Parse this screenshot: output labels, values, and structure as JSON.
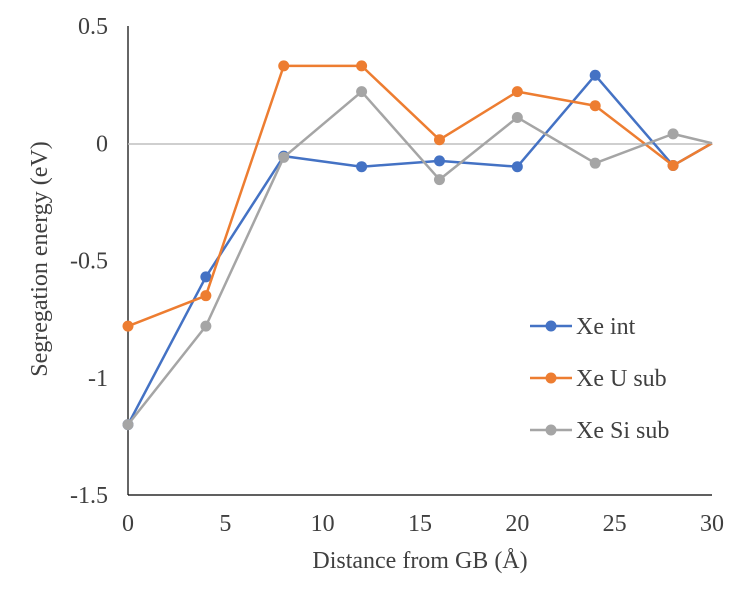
{
  "chart_data": {
    "type": "line",
    "title": "",
    "xlabel": "Distance from GB (Å)",
    "ylabel": "Segregation energy (eV)",
    "xlim": [
      0,
      30
    ],
    "ylim": [
      -1.5,
      0.5
    ],
    "x_ticks": [
      0,
      5,
      10,
      15,
      20,
      25,
      30
    ],
    "y_ticks": [
      0.5,
      0,
      -0.5,
      -1,
      -1.5
    ],
    "x_tick_labels": [
      "0",
      "5",
      "10",
      "15",
      "20",
      "25",
      "30"
    ],
    "y_tick_labels": [
      "0.5",
      "0",
      "-0.5",
      "-1",
      "-1.5"
    ],
    "grid": false,
    "zero_line": true,
    "legend_position": "lower-right",
    "x": [
      0,
      4,
      8,
      12,
      16,
      20,
      24,
      28,
      30
    ],
    "series": [
      {
        "name": "Xe int",
        "color": "#4472C4",
        "values": [
          -1.2,
          -0.57,
          -0.055,
          -0.1,
          -0.075,
          -0.1,
          0.29,
          -0.095,
          0
        ]
      },
      {
        "name": "Xe U sub",
        "color": "#ED7D31",
        "values": [
          -0.78,
          -0.65,
          0.33,
          0.33,
          0.015,
          0.22,
          0.16,
          -0.095,
          0
        ]
      },
      {
        "name": "Xe Si sub",
        "color": "#A5A5A5",
        "values": [
          -1.2,
          -0.78,
          -0.06,
          0.22,
          -0.155,
          0.11,
          -0.085,
          0.04,
          0
        ]
      }
    ]
  }
}
